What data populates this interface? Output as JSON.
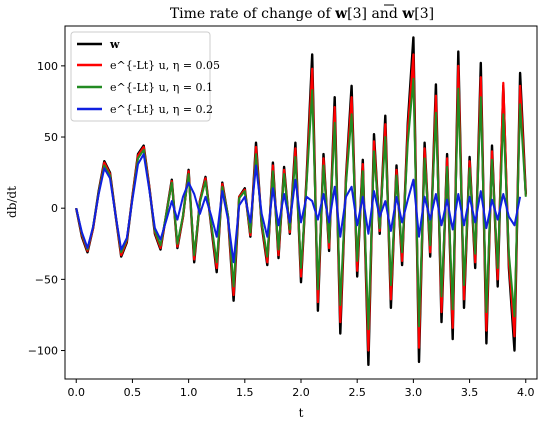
{
  "chart_data": {
    "type": "line",
    "title": "Time rate of change of w[3] and w̄[3]",
    "xlabel": "t",
    "ylabel": "db/dt",
    "xlim": [
      -0.1,
      4.1
    ],
    "ylim": [
      -120,
      128
    ],
    "xticks": [
      0.0,
      0.5,
      1.0,
      1.5,
      2.0,
      2.5,
      3.0,
      3.5,
      4.0
    ],
    "xtick_labels": [
      "0.0",
      "0.5",
      "1.0",
      "1.5",
      "2.0",
      "2.5",
      "3.0",
      "3.5",
      "4.0"
    ],
    "yticks": [
      -100,
      -50,
      0,
      50,
      100
    ],
    "ytick_labels": [
      "−100",
      "−50",
      "0",
      "50",
      "100"
    ],
    "grid": false,
    "legend_position": "top-left",
    "series": [
      {
        "name": "w",
        "color": "#000000",
        "x": [
          0.0,
          0.05,
          0.1,
          0.15,
          0.2,
          0.25,
          0.3,
          0.35,
          0.4,
          0.45,
          0.5,
          0.55,
          0.6,
          0.65,
          0.7,
          0.75,
          0.8,
          0.85,
          0.9,
          0.95,
          1.0,
          1.05,
          1.1,
          1.15,
          1.2,
          1.25,
          1.3,
          1.35,
          1.4,
          1.45,
          1.5,
          1.55,
          1.6,
          1.65,
          1.7,
          1.75,
          1.8,
          1.85,
          1.9,
          1.95,
          2.0,
          2.05,
          2.1,
          2.15,
          2.2,
          2.25,
          2.3,
          2.35,
          2.4,
          2.45,
          2.5,
          2.55,
          2.6,
          2.65,
          2.7,
          2.75,
          2.8,
          2.85,
          2.9,
          2.95,
          3.0,
          3.05,
          3.1,
          3.15,
          3.2,
          3.25,
          3.3,
          3.35,
          3.4,
          3.45,
          3.5,
          3.55,
          3.6,
          3.65,
          3.7,
          3.75,
          3.8,
          3.85,
          3.9,
          3.95,
          4.0
        ],
        "values": [
          0,
          -20,
          -31,
          -14,
          12,
          33,
          25,
          -5,
          -34,
          -24,
          8,
          38,
          44,
          15,
          -18,
          -29,
          -5,
          20,
          -28,
          -6,
          27,
          -38,
          5,
          22,
          -12,
          -45,
          18,
          -6,
          -65,
          8,
          14,
          -20,
          46,
          -12,
          -40,
          32,
          -35,
          29,
          -18,
          46,
          -52,
          22,
          108,
          -72,
          38,
          -30,
          78,
          -88,
          22,
          86,
          -48,
          34,
          -110,
          52,
          -18,
          65,
          -70,
          30,
          -40,
          60,
          120,
          -108,
          46,
          -34,
          87,
          -80,
          38,
          -92,
          110,
          -70,
          36,
          -42,
          102,
          -95,
          44,
          -55,
          86,
          -42,
          -100,
          95,
          10
        ]
      },
      {
        "name": "e^{-Lt} u, η = 0.05",
        "color": "#ff0000",
        "x": [
          0.0,
          0.05,
          0.1,
          0.15,
          0.2,
          0.25,
          0.3,
          0.35,
          0.4,
          0.45,
          0.5,
          0.55,
          0.6,
          0.65,
          0.7,
          0.75,
          0.8,
          0.85,
          0.9,
          0.95,
          1.0,
          1.05,
          1.1,
          1.15,
          1.2,
          1.25,
          1.3,
          1.35,
          1.4,
          1.45,
          1.5,
          1.55,
          1.6,
          1.65,
          1.7,
          1.75,
          1.8,
          1.85,
          1.9,
          1.95,
          2.0,
          2.05,
          2.1,
          2.15,
          2.2,
          2.25,
          2.3,
          2.35,
          2.4,
          2.45,
          2.5,
          2.55,
          2.6,
          2.65,
          2.7,
          2.75,
          2.8,
          2.85,
          2.9,
          2.95,
          3.0,
          3.05,
          3.1,
          3.15,
          3.2,
          3.25,
          3.3,
          3.35,
          3.4,
          3.45,
          3.5,
          3.55,
          3.6,
          3.65,
          3.7,
          3.75,
          3.8,
          3.85,
          3.9,
          3.95,
          4.0
        ],
        "values": [
          0,
          -19,
          -30,
          -14,
          11,
          32,
          24,
          -5,
          -33,
          -23,
          8,
          37,
          43,
          15,
          -17,
          -28,
          -5,
          19,
          -27,
          -6,
          26,
          -36,
          5,
          21,
          -11,
          -42,
          17,
          -6,
          -61,
          8,
          13,
          -19,
          43,
          -11,
          -38,
          30,
          -33,
          27,
          -17,
          42,
          -48,
          20,
          98,
          -66,
          35,
          -28,
          71,
          -80,
          20,
          78,
          -44,
          31,
          -100,
          47,
          -16,
          59,
          -64,
          27,
          -37,
          55,
          108,
          -98,
          42,
          -31,
          79,
          -73,
          35,
          -84,
          100,
          -64,
          33,
          -38,
          92,
          -86,
          40,
          -50,
          88,
          -38,
          -90,
          86,
          9
        ]
      },
      {
        "name": "e^{-Lt} u, η = 0.1",
        "color": "#228b22",
        "x": [
          0.0,
          0.05,
          0.1,
          0.15,
          0.2,
          0.25,
          0.3,
          0.35,
          0.4,
          0.45,
          0.5,
          0.55,
          0.6,
          0.65,
          0.7,
          0.75,
          0.8,
          0.85,
          0.9,
          0.95,
          1.0,
          1.05,
          1.1,
          1.15,
          1.2,
          1.25,
          1.3,
          1.35,
          1.4,
          1.45,
          1.5,
          1.55,
          1.6,
          1.65,
          1.7,
          1.75,
          1.8,
          1.85,
          1.9,
          1.95,
          2.0,
          2.05,
          2.1,
          2.15,
          2.2,
          2.25,
          2.3,
          2.35,
          2.4,
          2.45,
          2.5,
          2.55,
          2.6,
          2.65,
          2.7,
          2.75,
          2.8,
          2.85,
          2.9,
          2.95,
          3.0,
          3.05,
          3.1,
          3.15,
          3.2,
          3.25,
          3.3,
          3.35,
          3.4,
          3.45,
          3.5,
          3.55,
          3.6,
          3.65,
          3.7,
          3.75,
          3.8,
          3.85,
          3.9,
          3.95,
          4.0
        ],
        "values": [
          0,
          -18,
          -29,
          -13,
          11,
          30,
          23,
          -5,
          -31,
          -22,
          7,
          35,
          41,
          14,
          -16,
          -26,
          -5,
          18,
          -25,
          -5,
          24,
          -33,
          4,
          19,
          -10,
          -38,
          15,
          -5,
          -55,
          7,
          12,
          -17,
          38,
          -10,
          -34,
          26,
          -29,
          24,
          -15,
          36,
          -42,
          17,
          83,
          -57,
          30,
          -24,
          60,
          -68,
          17,
          66,
          -37,
          26,
          -85,
          40,
          -14,
          50,
          -54,
          23,
          -31,
          46,
          91,
          -83,
          35,
          -26,
          67,
          -62,
          29,
          -71,
          84,
          -54,
          28,
          -32,
          78,
          -73,
          34,
          -42,
          66,
          -32,
          -76,
          73,
          8
        ]
      },
      {
        "name": "e^{-Lt} u, η = 0.2",
        "color": "#1020e0",
        "x": [
          0.0,
          0.05,
          0.1,
          0.15,
          0.2,
          0.25,
          0.3,
          0.35,
          0.4,
          0.45,
          0.5,
          0.55,
          0.6,
          0.65,
          0.7,
          0.75,
          0.8,
          0.85,
          0.9,
          0.95,
          1.0,
          1.05,
          1.1,
          1.15,
          1.2,
          1.25,
          1.3,
          1.35,
          1.4,
          1.45,
          1.5,
          1.55,
          1.6,
          1.65,
          1.7,
          1.75,
          1.8,
          1.85,
          1.9,
          1.95,
          2.0,
          2.05,
          2.1,
          2.15,
          2.2,
          2.25,
          2.3,
          2.35,
          2.4,
          2.45,
          2.5,
          2.55,
          2.6,
          2.65,
          2.7,
          2.75,
          2.8,
          2.85,
          2.9,
          2.95,
          3.0,
          3.05,
          3.1,
          3.15,
          3.2,
          3.25,
          3.3,
          3.35,
          3.4,
          3.45,
          3.5,
          3.55,
          3.6,
          3.65,
          3.7,
          3.75,
          3.8,
          3.85,
          3.9,
          3.95
        ],
        "values": [
          0,
          -17,
          -28,
          -13,
          10,
          28,
          21,
          -5,
          -29,
          -21,
          6,
          31,
          38,
          13,
          -14,
          -22,
          -9,
          5,
          -8,
          8,
          18,
          10,
          -4,
          8,
          -5,
          -20,
          12,
          -8,
          -38,
          2,
          8,
          -10,
          30,
          -4,
          -20,
          14,
          -12,
          10,
          -10,
          20,
          -10,
          8,
          5,
          -8,
          10,
          -10,
          15,
          -20,
          8,
          15,
          -12,
          8,
          -18,
          12,
          -6,
          5,
          -16,
          8,
          -10,
          6,
          20,
          -20,
          8,
          -8,
          10,
          -12,
          6,
          -15,
          10,
          -12,
          8,
          -10,
          12,
          -14,
          6,
          -8,
          10,
          -6,
          -12,
          8
        ]
      }
    ]
  }
}
